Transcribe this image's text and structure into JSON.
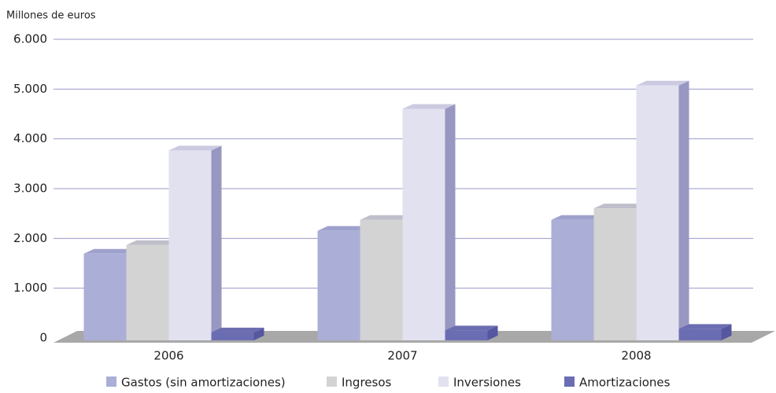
{
  "chart_data": {
    "type": "bar3d",
    "y_axis_label": "Millones de euros",
    "categories": [
      "2006",
      "2007",
      "2008"
    ],
    "series": [
      {
        "name": "Gastos (sin amortizaciones)",
        "color": "#abaed6",
        "values": [
          1740,
          2200,
          2420
        ]
      },
      {
        "name": "Ingresos",
        "color": "#d3d3d3",
        "values": [
          1915,
          2420,
          2650
        ]
      },
      {
        "name": "Inversiones",
        "color": "#e2e1ef",
        "values": [
          3815,
          4650,
          5120
        ]
      },
      {
        "name": "Amortizaciones",
        "color": "#6b6db3",
        "values": [
          160,
          200,
          230
        ]
      }
    ],
    "ylim": [
      0,
      6000
    ],
    "yticks": [
      0,
      {
        "value": 1000,
        "label": "1.000"
      },
      {
        "value": 2000,
        "label": "2.000"
      },
      {
        "value": 3000,
        "label": "3.000"
      },
      {
        "value": 4000,
        "label": "4.000"
      },
      {
        "value": 5000,
        "label": "5.000"
      },
      {
        "value": 6000,
        "label": "6.000"
      }
    ],
    "grid": true,
    "legend": "bottom"
  }
}
